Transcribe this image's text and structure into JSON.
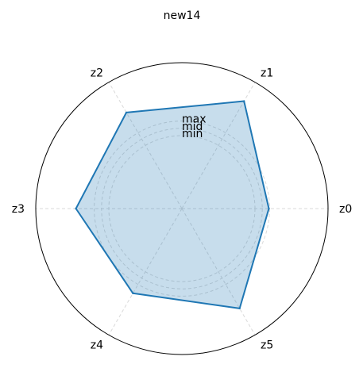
{
  "chart_data": {
    "type": "radar",
    "title": "new14",
    "categories": [
      "z0",
      "z1",
      "z2",
      "z3",
      "z4",
      "z5"
    ],
    "series": [
      {
        "values": [
          0.19,
          0.7,
          0.52,
          0.45,
          0.34,
          0.58
        ]
      }
    ],
    "rlim": [
      -1.0,
      1.0
    ],
    "reference_rings": [
      {
        "label": "min",
        "value": 0.0
      },
      {
        "label": "mid",
        "value": 0.1
      },
      {
        "label": "max",
        "value": 0.2
      }
    ],
    "grid": true,
    "colors": {
      "line": "#1f77b4",
      "fill": "#1f77b4",
      "grid": "#d9d9d9",
      "frame": "#000000"
    }
  }
}
